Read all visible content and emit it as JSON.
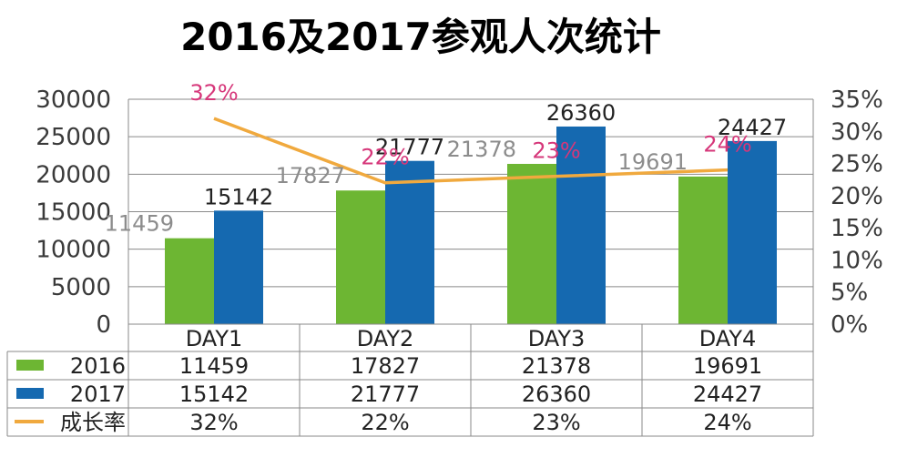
{
  "chart_data": {
    "type": "bar",
    "title": "2016及2017参观人次统计",
    "categories": [
      "DAY1",
      "DAY2",
      "DAY3",
      "DAY4"
    ],
    "series": [
      {
        "name": "2016",
        "type": "bar",
        "axis": "left",
        "color": "#6db633",
        "values": [
          11459,
          17827,
          21378,
          19691
        ],
        "labels": [
          "11459",
          "17827",
          "21378",
          "19691"
        ]
      },
      {
        "name": "2017",
        "type": "bar",
        "axis": "left",
        "color": "#1569b0",
        "values": [
          15142,
          21777,
          26360,
          24427
        ],
        "labels": [
          "15142",
          "21777",
          "26360",
          "24427"
        ]
      },
      {
        "name": "成长率",
        "type": "line",
        "axis": "right",
        "color": "#f0a93e",
        "values": [
          32,
          22,
          23,
          24
        ],
        "labels": [
          "32%",
          "22%",
          "23%",
          "24%"
        ]
      }
    ],
    "y_left": {
      "ylim": [
        0,
        30000
      ],
      "ticks": [
        "0",
        "5000",
        "10000",
        "15000",
        "20000",
        "25000",
        "30000"
      ]
    },
    "y_right": {
      "ylim": [
        0,
        35
      ],
      "ticks": [
        "0%",
        "5%",
        "10%",
        "15%",
        "20%",
        "25%",
        "30%",
        "35%"
      ]
    },
    "grid": true,
    "legend": "data-table",
    "data_table": true,
    "colors": {
      "label_2016": "#8c8c8c",
      "label_2017": "#222222",
      "label_rate": "#d6377a"
    }
  }
}
